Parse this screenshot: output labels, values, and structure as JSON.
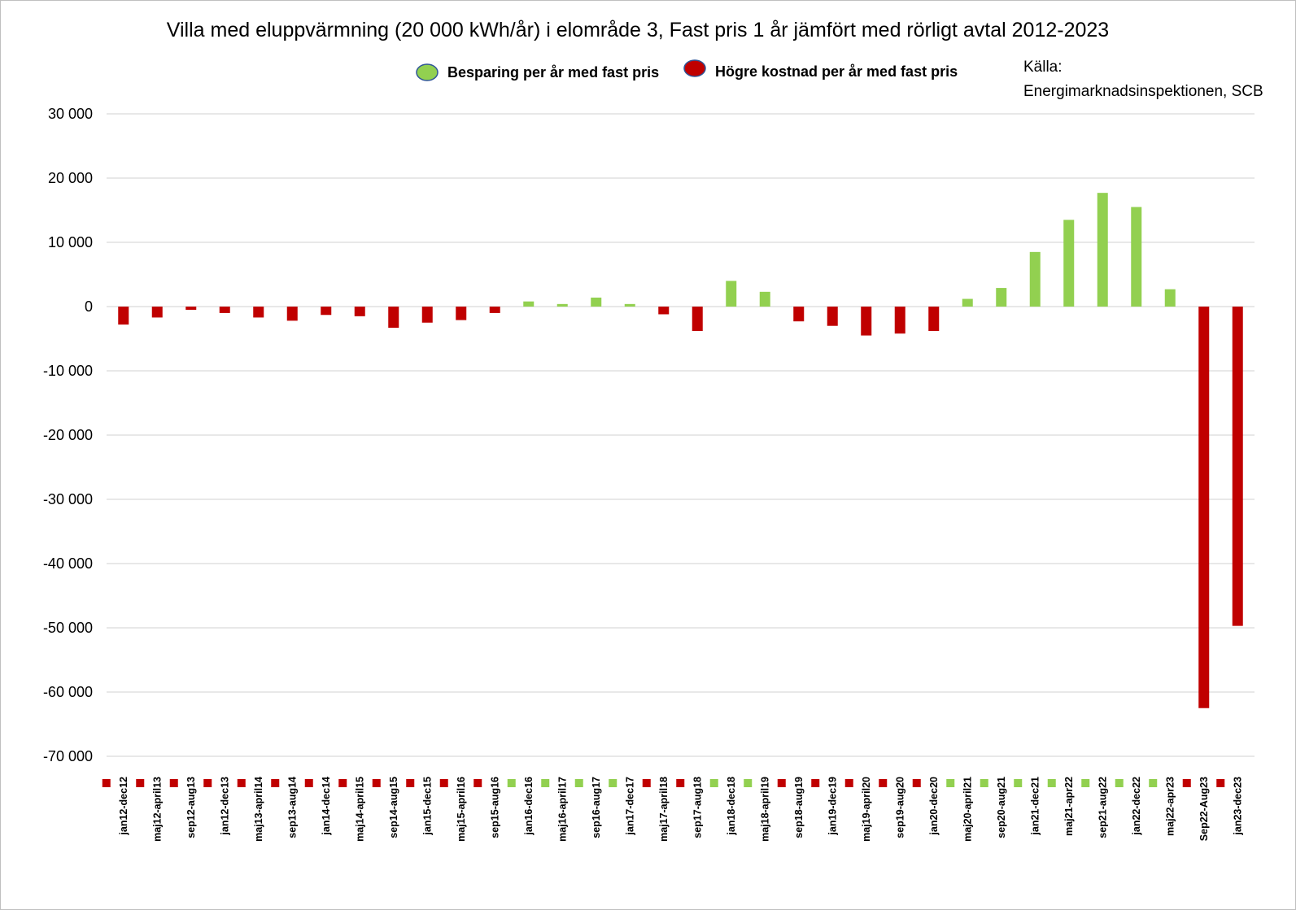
{
  "chart_data": {
    "type": "bar",
    "title": "Villa med eluppvärmning (20 000 kWh/år) i elområde 3, Fast pris 1 år jämfört med rörligt avtal 2012-2023",
    "xlabel": "",
    "ylabel": "",
    "ylim": [
      -70000,
      30000
    ],
    "yticks": [
      30000,
      20000,
      10000,
      0,
      -10000,
      -20000,
      -30000,
      -40000,
      -50000,
      -60000,
      -70000
    ],
    "ytick_labels": [
      "30 000",
      "20 000",
      "10 000",
      "0",
      "-10 000",
      "-20 000",
      "-30 000",
      "-40 000",
      "-50 000",
      "-60 000",
      "-70 000"
    ],
    "grid": true,
    "source_label": "Källa:",
    "source_text": "Energimarknadsinspektionen, SCB",
    "legend": [
      {
        "label": "Besparing per år med fast pris",
        "color": "#92d050"
      },
      {
        "label": "Högre kostnad per år med fast pris",
        "color": "#c00000"
      }
    ],
    "colors": {
      "positive": "#92d050",
      "negative": "#c00000"
    },
    "categories": [
      "jan12-dec12",
      "maj12-april13",
      "sep12-aug13",
      "jan12-dec13",
      "maj13-april14",
      "sep13-aug14",
      "jan14-dec14",
      "maj14-april15",
      "sep14-aug15",
      "jan15-dec15",
      "maj15-april16",
      "sep15-aug16",
      "jan16-dec16",
      "maj16-april17",
      "sep16-aug17",
      "jan17-dec17",
      "maj17-april18",
      "sep17-aug18",
      "jan18-dec18",
      "maj18-april19",
      "sep18-aug19",
      "jan19-dec19",
      "maj19-april20",
      "sep19-aug20",
      "jan20-dec20",
      "maj20-april21",
      "sep20-aug21",
      "jan21-dec21",
      "maj21-apr22",
      "sep21-aug22",
      "jan22-dec22",
      "maj22-apr23",
      "Sep22-Aug23",
      "jan23-dec23"
    ],
    "values": [
      -2800,
      -1700,
      -500,
      -1000,
      -1700,
      -2200,
      -1300,
      -1500,
      -3300,
      -2500,
      -2100,
      -1000,
      800,
      400,
      1400,
      400,
      -1200,
      -3800,
      4000,
      2300,
      -2300,
      -3000,
      -4500,
      -4200,
      -3800,
      1200,
      2900,
      8500,
      13500,
      17700,
      15500,
      2700,
      -62500,
      -49700
    ]
  }
}
